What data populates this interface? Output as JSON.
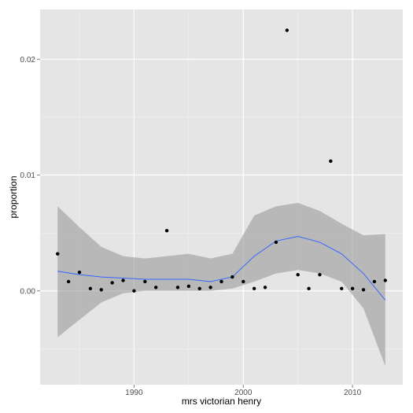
{
  "chart_data": {
    "type": "scatter",
    "xlabel": "mrs victorian henry",
    "ylabel": "proportion",
    "xlim": [
      1981.4,
      2014.6
    ],
    "ylim": [
      -0.0081,
      0.0243
    ],
    "x_ticks": [
      1990,
      2000,
      2010
    ],
    "x_tick_labels": [
      "1990",
      "2000",
      "2010"
    ],
    "y_ticks": [
      0.0,
      0.01,
      0.02
    ],
    "y_tick_labels": [
      "0.00",
      "0.01",
      "0.02"
    ],
    "grid": true,
    "legend": "none",
    "colors": {
      "panel": "#e5e5e5",
      "grid_major": "#ffffff",
      "grid_minor": "#f2f2f2",
      "points": "#000000",
      "smooth_line": "#3366ff",
      "ribbon": "#999999"
    },
    "points": {
      "x": [
        1983,
        1984,
        1985,
        1986,
        1987,
        1988,
        1989,
        1990,
        1991,
        1992,
        1993,
        1994,
        1995,
        1996,
        1997,
        1998,
        1999,
        2000,
        2001,
        2002,
        2003,
        2004,
        2005,
        2006,
        2007,
        2008,
        2009,
        2010,
        2011,
        2012,
        2013
      ],
      "y": [
        0.0032,
        0.0008,
        0.0016,
        0.0002,
        0.0001,
        0.0007,
        0.0009,
        0.0,
        0.0008,
        0.0003,
        0.0052,
        0.0003,
        0.0004,
        0.0002,
        0.0003,
        0.0008,
        0.0012,
        0.0008,
        0.0002,
        0.0003,
        0.0042,
        0.0225,
        0.0014,
        0.0002,
        0.0014,
        0.0112,
        0.0002,
        0.0002,
        0.0001,
        0.0008,
        0.0009
      ]
    },
    "smooth": {
      "x": [
        1983,
        1985,
        1987,
        1989,
        1991,
        1993,
        1995,
        1997,
        1999,
        2001,
        2003,
        2005,
        2007,
        2009,
        2011,
        2013
      ],
      "y": [
        0.0017,
        0.0014,
        0.0012,
        0.0011,
        0.001,
        0.001,
        0.001,
        0.0008,
        0.0012,
        0.003,
        0.0043,
        0.0047,
        0.0042,
        0.0032,
        0.0015,
        -0.0008
      ],
      "lower": [
        -0.004,
        -0.0025,
        -0.001,
        -0.0002,
        0.0,
        0.0,
        0.0,
        0.0,
        0.0002,
        0.0008,
        0.0015,
        0.0018,
        0.0015,
        0.0008,
        -0.0015,
        -0.0065
      ],
      "upper": [
        0.0073,
        0.0055,
        0.0038,
        0.003,
        0.0028,
        0.003,
        0.0032,
        0.0028,
        0.0032,
        0.0065,
        0.0073,
        0.0076,
        0.0069,
        0.0058,
        0.0048,
        0.0049
      ]
    }
  }
}
